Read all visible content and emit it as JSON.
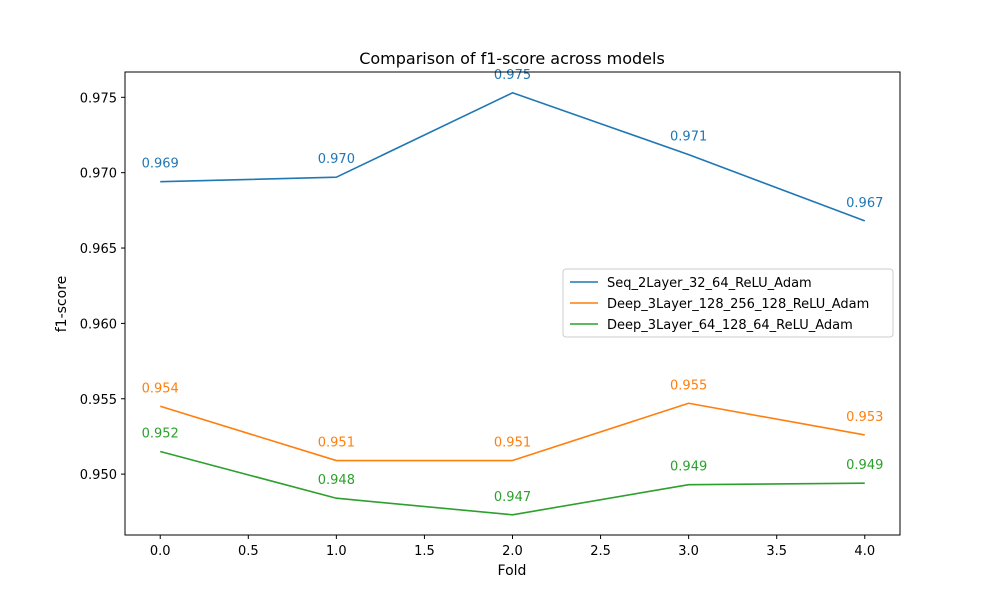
{
  "chart_data": {
    "type": "line",
    "title": "Comparison of f1-score across models",
    "xlabel": "Fold",
    "ylabel": "f1-score",
    "x": [
      0,
      1,
      2,
      3,
      4
    ],
    "xticks": [
      "0.0",
      "0.5",
      "1.0",
      "1.5",
      "2.0",
      "2.5",
      "3.0",
      "3.5",
      "4.0"
    ],
    "yticks": [
      "0.950",
      "0.955",
      "0.960",
      "0.965",
      "0.970",
      "0.975"
    ],
    "xlim": [
      -0.2,
      4.2
    ],
    "ylim": [
      0.94596,
      0.97668
    ],
    "grid": false,
    "legend_position": "right",
    "series": [
      {
        "name": "Seq_2Layer_32_64_ReLU_Adam",
        "color": "#1f77b4",
        "values": [
          0.9694,
          0.9697,
          0.9753,
          0.9712,
          0.9668
        ],
        "labels": [
          "0.969",
          "0.970",
          "0.975",
          "0.971",
          "0.967"
        ]
      },
      {
        "name": "Deep_3Layer_128_256_128_ReLU_Adam",
        "color": "#ff7f0e",
        "values": [
          0.9545,
          0.9509,
          0.9509,
          0.9547,
          0.9526
        ],
        "labels": [
          "0.954",
          "0.951",
          "0.951",
          "0.955",
          "0.953"
        ]
      },
      {
        "name": "Deep_3Layer_64_128_64_ReLU_Adam",
        "color": "#2ca02c",
        "values": [
          0.9515,
          0.9484,
          0.9473,
          0.9493,
          0.9494
        ],
        "labels": [
          "0.952",
          "0.948",
          "0.947",
          "0.949",
          "0.949"
        ]
      }
    ]
  }
}
